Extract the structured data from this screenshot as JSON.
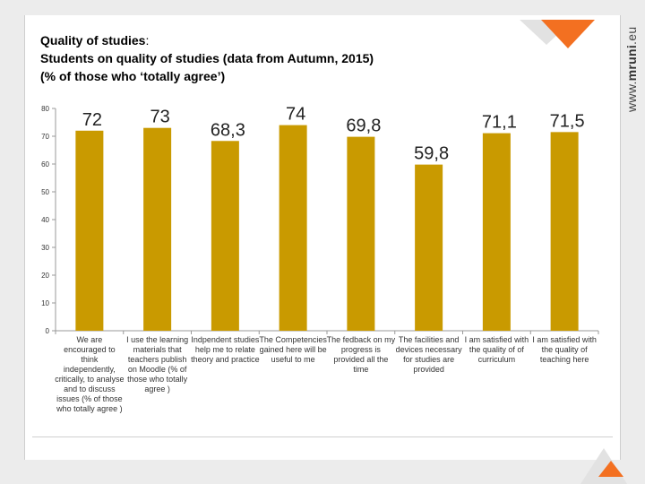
{
  "title": {
    "line1_bold": "Quality of studies",
    "line1_suffix": ":",
    "line2": "Students on quality of studies (data from Autumn, 2015)",
    "line3": "(% of those  who ‘totally agree’)"
  },
  "brand": {
    "prefix": "www.",
    "name": "mruni",
    "suffix": ".eu"
  },
  "colors": {
    "bar": "#c99a00",
    "accent_orange": "#f37021",
    "axis": "#999999",
    "grid": "#d9d9d9"
  },
  "chart_data": {
    "type": "bar",
    "categories": [
      "We are encouraged to think independently, critically, to analyse and to discuss issues (% of those who totally agree )",
      "I use the learning materials that teachers publish on Moodle (% of those who totally agree )",
      "Indpendent studies help me to relate theory and practice",
      "The Competencies gained here will be useful to me",
      "The fedback on my progress is provided all the time",
      "The facilities and devices necessary for studies are provided",
      "I am satisfied with the quality of of curriculum",
      "I am satisfied with the quality of teaching here"
    ],
    "values": [
      72,
      73,
      68.3,
      74,
      69.8,
      59.8,
      71.1,
      71.5
    ],
    "data_labels": [
      "72",
      "73",
      "68,3",
      "74",
      "69,8",
      "59,8",
      "71,1",
      "71,5"
    ],
    "ylim": [
      0,
      80
    ],
    "yticks": [
      "0",
      "10",
      "20",
      "30",
      "40",
      "50",
      "60",
      "70",
      "80"
    ],
    "grid": false,
    "legend": "none",
    "xlabel": "",
    "ylabel": ""
  }
}
